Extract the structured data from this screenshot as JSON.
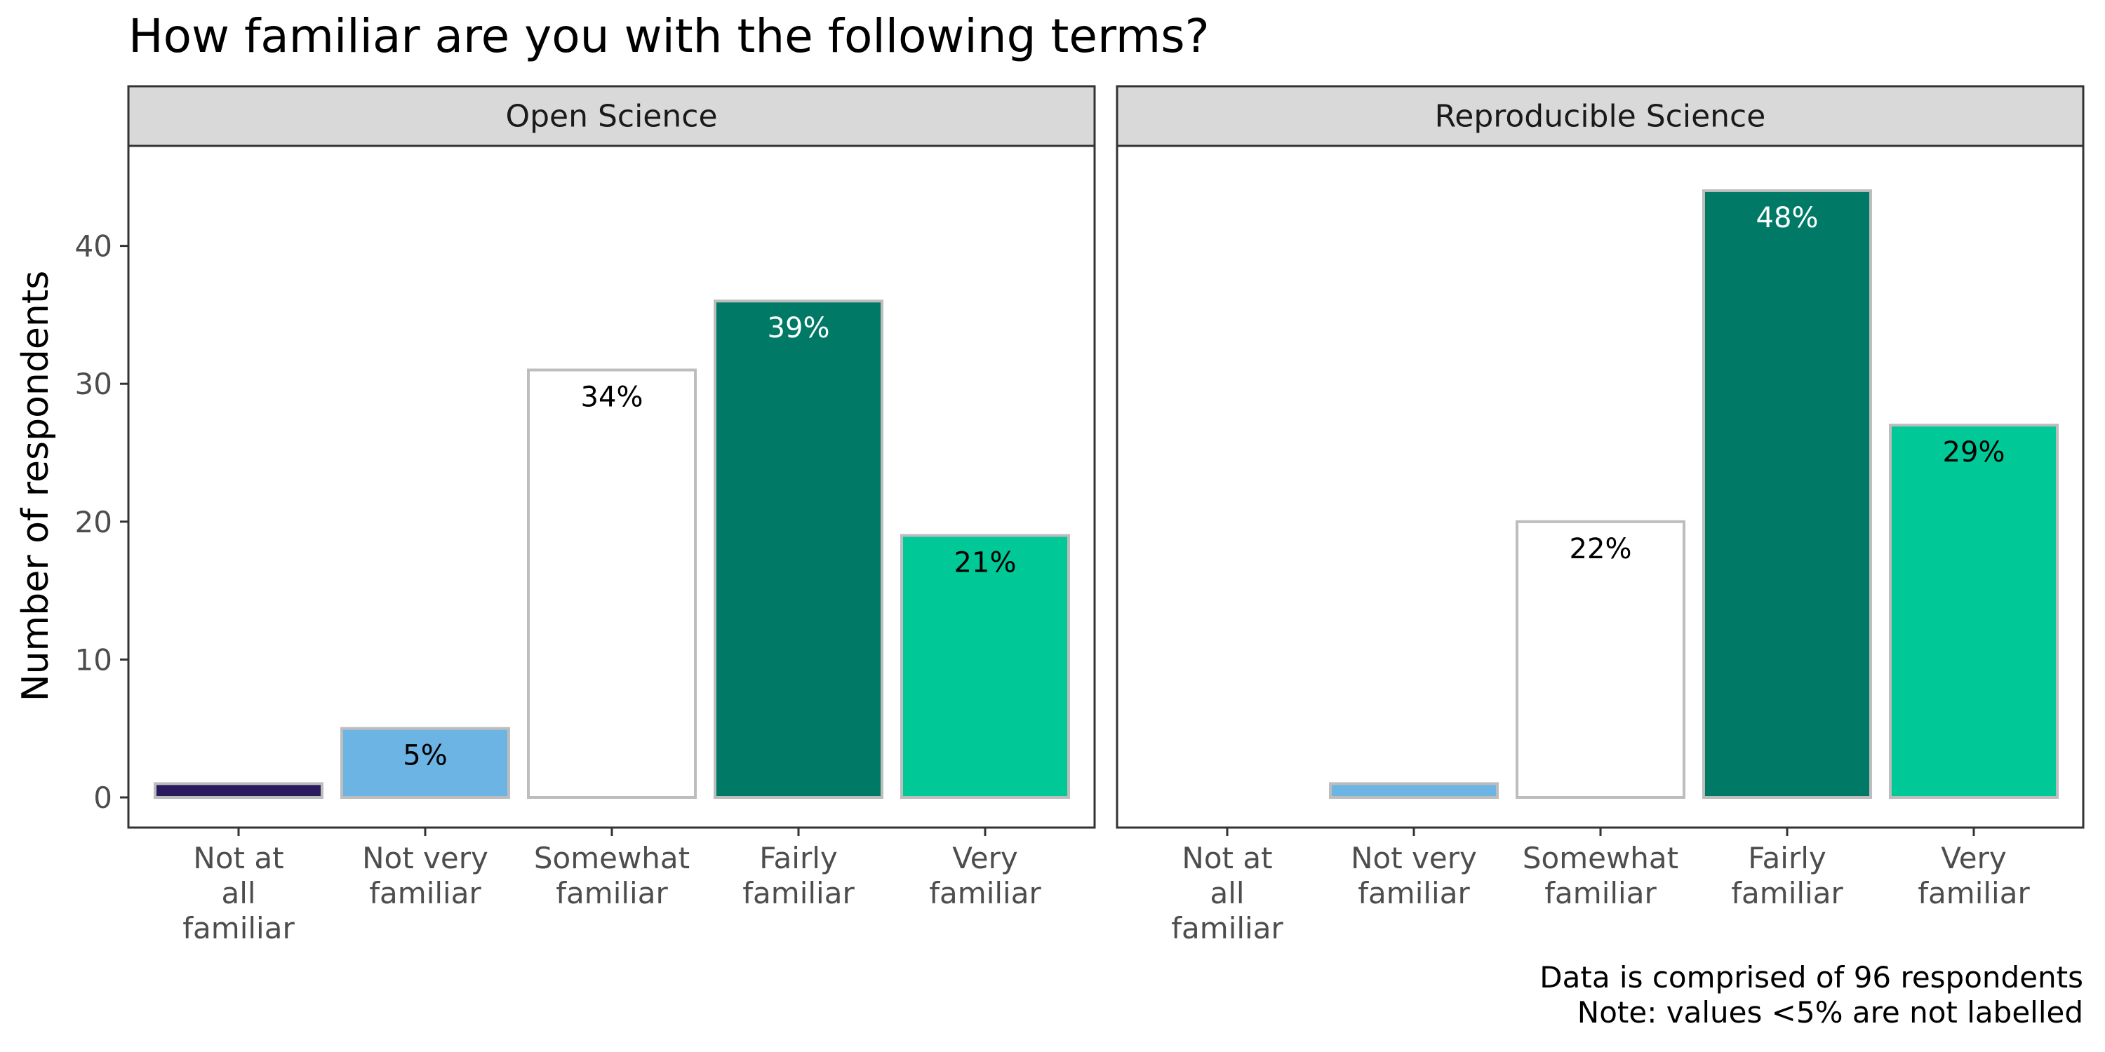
{
  "chart_data": {
    "type": "bar",
    "title": "How familiar are you with the following terms?",
    "ylabel": "Number of respondents",
    "xlabel": "",
    "ylim": [
      0,
      50
    ],
    "yticks": [
      0,
      10,
      20,
      30,
      40
    ],
    "grid": false,
    "categories": [
      [
        "Not at",
        "all",
        "familiar"
      ],
      [
        "Not very",
        "familiar"
      ],
      [
        "Somewhat",
        "familiar"
      ],
      [
        "Fairly",
        "familiar"
      ],
      [
        "Very",
        "familiar"
      ]
    ],
    "colors": [
      "#2a1a5e",
      "#6cb4e4",
      "#ffffff",
      "#007a67",
      "#00c896"
    ],
    "label_colors": [
      "#000000",
      "#000000",
      "#000000",
      "#ffffff",
      "#000000"
    ],
    "panels": [
      {
        "name": "Open Science",
        "values": [
          1,
          5,
          31,
          36,
          19
        ],
        "labels": [
          "",
          "5%",
          "34%",
          "39%",
          "21%"
        ]
      },
      {
        "name": "Reproducible Science",
        "values": [
          0,
          1,
          20,
          44,
          27
        ],
        "labels": [
          "",
          "",
          "22%",
          "48%",
          "29%"
        ]
      }
    ],
    "caption": [
      "Data is comprised of 96 respondents",
      "Note: values <5% are not labelled"
    ]
  }
}
